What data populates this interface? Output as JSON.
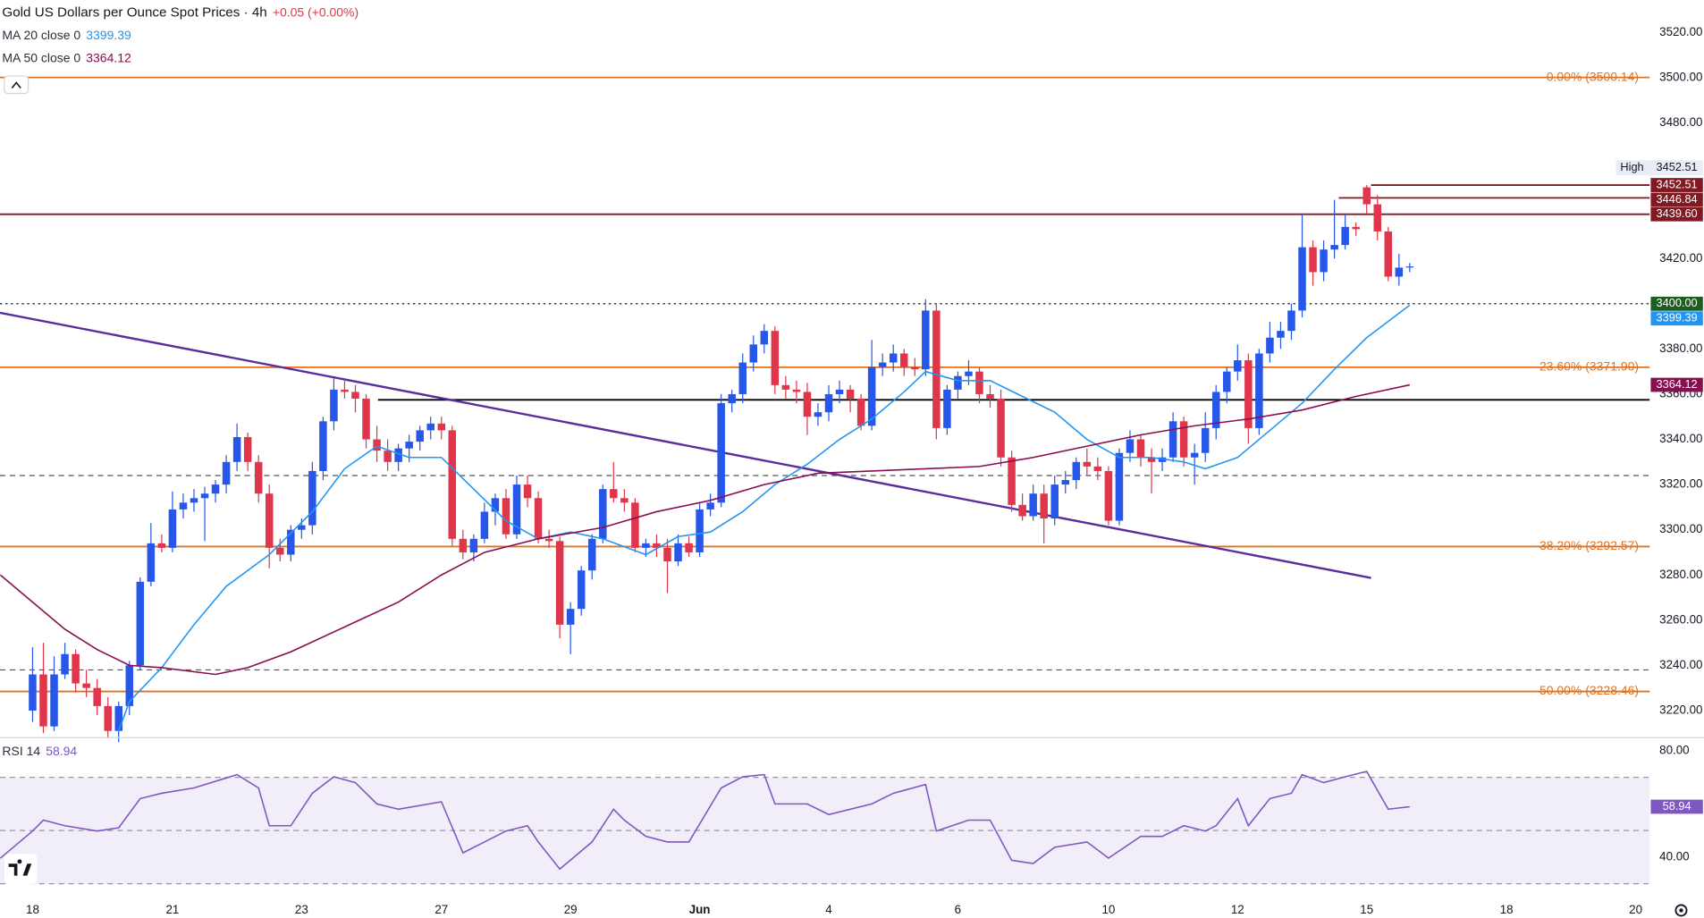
{
  "chart_data": {
    "type": "candlestick",
    "title": "Gold US Dollars per Ounce Spot Prices · 4h",
    "change": "+0.05 (+0.00%)",
    "change_color": "#e0364c",
    "up_color": "#2757e8",
    "down_color": "#e0364c",
    "open": [
      3220,
      3236,
      3213,
      3236,
      3245,
      3232,
      3230,
      3222,
      3211,
      3222,
      3240,
      3277,
      3294,
      3292,
      3309,
      3312,
      3314,
      3316,
      3320,
      3330,
      3341,
      3330,
      3316,
      3292,
      3289,
      3300,
      3302,
      3326,
      3348,
      3362,
      3361,
      3358,
      3340,
      3335,
      3330,
      3336,
      3339,
      3344,
      3347,
      3344,
      3296,
      3290,
      3296,
      3308,
      3314,
      3298,
      3320,
      3314,
      3296,
      3295,
      3258,
      3265,
      3282,
      3296,
      3318,
      3314,
      3312,
      3292,
      3294,
      3292,
      3286,
      3294,
      3290,
      3309,
      3312,
      3356,
      3360,
      3374,
      3382,
      3388,
      3364,
      3362,
      3361,
      3350,
      3352,
      3360,
      3362,
      3358,
      3346,
      3372,
      3374,
      3378,
      3372,
      3371,
      3397,
      3345,
      3362,
      3368,
      3370,
      3360,
      3358,
      3332,
      3311,
      3306,
      3316,
      3305,
      3320,
      3322,
      3330,
      3328,
      3326,
      3304,
      3334,
      3340,
      3332,
      3330,
      3332,
      3348,
      3332,
      3334,
      3345,
      3361,
      3370,
      3375,
      3345,
      3378,
      3385,
      3388,
      3397,
      3425,
      3414,
      3424,
      3426,
      3434,
      3451.5,
      3444,
      3432,
      3412,
      3416.45
    ],
    "high": [
      3248,
      3250,
      3244,
      3250,
      3247,
      3238,
      3234,
      3226,
      3224,
      3242,
      3279,
      3303,
      3298,
      3317,
      3316,
      3318,
      3319,
      3322,
      3333,
      3347,
      3343,
      3333,
      3320,
      3296,
      3302,
      3305,
      3330,
      3350,
      3367,
      3366,
      3364,
      3360,
      3346,
      3340,
      3338,
      3342,
      3346,
      3350,
      3350,
      3346,
      3300,
      3298,
      3312,
      3316,
      3318,
      3324,
      3324,
      3317,
      3300,
      3297,
      3268,
      3284,
      3298,
      3320,
      3330,
      3318,
      3314,
      3296,
      3298,
      3296,
      3298,
      3297,
      3312,
      3316,
      3360,
      3362,
      3378,
      3386,
      3391,
      3390,
      3368,
      3366,
      3365,
      3356,
      3364,
      3366,
      3364,
      3360,
      3384,
      3378,
      3382,
      3380,
      3376,
      3402,
      3400,
      3364,
      3370,
      3375,
      3372,
      3364,
      3362,
      3335,
      3316,
      3320,
      3320,
      3324,
      3326,
      3332,
      3336,
      3332,
      3328,
      3336,
      3344,
      3342,
      3336,
      3336,
      3352,
      3350,
      3338,
      3352,
      3364,
      3372,
      3382,
      3378,
      3380,
      3392,
      3392,
      3400,
      3440,
      3428,
      3428,
      3446,
      3440,
      3436,
      3452.51,
      3448,
      3434,
      3422,
      3418
    ],
    "low": [
      3215,
      3210,
      3211,
      3234,
      3228,
      3226,
      3218,
      3208,
      3206,
      3218,
      3238,
      3275,
      3290,
      3290,
      3305,
      3308,
      3295,
      3312,
      3316,
      3326,
      3326,
      3312,
      3283,
      3286,
      3286,
      3296,
      3298,
      3322,
      3344,
      3358,
      3352,
      3336,
      3330,
      3326,
      3326,
      3330,
      3335,
      3340,
      3340,
      3293,
      3287,
      3286,
      3294,
      3302,
      3296,
      3296,
      3310,
      3294,
      3292,
      3252,
      3245,
      3262,
      3278,
      3294,
      3312,
      3308,
      3290,
      3288,
      3288,
      3272,
      3284,
      3288,
      3288,
      3306,
      3310,
      3352,
      3356,
      3370,
      3378,
      3360,
      3358,
      3356,
      3342,
      3346,
      3348,
      3356,
      3352,
      3344,
      3344,
      3368,
      3370,
      3368,
      3368,
      3368,
      3340,
      3342,
      3358,
      3364,
      3356,
      3354,
      3328,
      3308,
      3304,
      3304,
      3294,
      3302,
      3316,
      3318,
      3324,
      3322,
      3302,
      3302,
      3330,
      3328,
      3316,
      3326,
      3330,
      3328,
      3320,
      3330,
      3340,
      3356,
      3366,
      3338,
      3342,
      3374,
      3380,
      3384,
      3394,
      3408,
      3410,
      3420,
      3424,
      3430,
      3440,
      3428,
      3410,
      3408,
      3414
    ],
    "close": [
      3236,
      3213,
      3236,
      3245,
      3232,
      3230,
      3222,
      3211,
      3222,
      3240,
      3277,
      3294,
      3292,
      3309,
      3312,
      3314,
      3316,
      3320,
      3330,
      3341,
      3330,
      3316,
      3292,
      3289,
      3300,
      3302,
      3326,
      3348,
      3362,
      3361,
      3358,
      3340,
      3335,
      3330,
      3336,
      3339,
      3344,
      3347,
      3344,
      3296,
      3290,
      3296,
      3308,
      3314,
      3298,
      3320,
      3314,
      3296,
      3295,
      3258,
      3265,
      3282,
      3296,
      3318,
      3314,
      3312,
      3292,
      3294,
      3292,
      3286,
      3294,
      3290,
      3309,
      3312,
      3356,
      3360,
      3374,
      3382,
      3388,
      3364,
      3362,
      3361,
      3350,
      3352,
      3360,
      3362,
      3358,
      3346,
      3372,
      3374,
      3378,
      3372,
      3371,
      3397,
      3345,
      3362,
      3368,
      3370,
      3360,
      3358,
      3332,
      3311,
      3306,
      3316,
      3305,
      3320,
      3322,
      3330,
      3328,
      3326,
      3304,
      3334,
      3340,
      3332,
      3330,
      3332,
      3348,
      3332,
      3334,
      3345,
      3361,
      3370,
      3375,
      3345,
      3378,
      3385,
      3388,
      3397,
      3425,
      3414,
      3424,
      3426,
      3434,
      3433,
      3444,
      3432,
      3412,
      3416,
      3416.5
    ],
    "xlim": [
      -3.03,
      150.3
    ],
    "xticks": [
      {
        "value": 0,
        "label": "18"
      },
      {
        "value": 13,
        "label": "21"
      },
      {
        "value": 25,
        "label": "23"
      },
      {
        "value": 38,
        "label": "27"
      },
      {
        "value": 50,
        "label": "29"
      },
      {
        "value": 62,
        "label": "Jun"
      },
      {
        "value": 74,
        "label": "4"
      },
      {
        "value": 86,
        "label": "6"
      },
      {
        "value": 100,
        "label": "10"
      },
      {
        "value": 112,
        "label": "12"
      },
      {
        "value": 124,
        "label": "15"
      },
      {
        "value": 137,
        "label": "18"
      },
      {
        "value": 149,
        "label": "20"
      }
    ],
    "ylim": [
      3208.5,
      3534.4
    ],
    "yticks": [
      {
        "value": 3220,
        "label": "3220.00"
      },
      {
        "value": 3240,
        "label": "3240.00"
      },
      {
        "value": 3260,
        "label": "3260.00"
      },
      {
        "value": 3280,
        "label": "3280.00"
      },
      {
        "value": 3300,
        "label": "3300.00"
      },
      {
        "value": 3320,
        "label": "3320.00"
      },
      {
        "value": 3340,
        "label": "3340.00"
      },
      {
        "value": 3360,
        "label": "3360.00"
      },
      {
        "value": 3380,
        "label": "3380.00"
      },
      {
        "value": 3400,
        "label": "3400.00"
      },
      {
        "value": 3420,
        "label": "3420.00"
      },
      {
        "value": 3440,
        "label": "3440.00"
      },
      {
        "value": 3460,
        "label": "3460.00"
      },
      {
        "value": 3480,
        "label": "3480.00"
      },
      {
        "value": 3500,
        "label": "3500.00"
      },
      {
        "value": 3520,
        "label": "3520.00"
      }
    ],
    "ma": [
      {
        "name": "MA 20 close 0",
        "color": "#2196f3",
        "x": [
          8,
          9,
          12,
          15,
          18,
          22,
          26,
          29,
          32,
          35,
          38,
          41,
          44,
          47,
          50,
          53,
          57,
          60,
          63,
          66,
          69,
          72,
          75,
          78,
          81,
          83,
          86,
          89,
          92,
          95,
          98,
          101,
          104,
          107,
          109,
          112,
          115,
          118,
          121,
          124,
          128
        ],
        "values": [
          3211,
          3224,
          3239,
          3258,
          3275,
          3289,
          3308,
          3327,
          3337,
          3332,
          3332,
          3318,
          3304,
          3296,
          3299,
          3296,
          3289,
          3297,
          3299,
          3308,
          3320,
          3329,
          3340,
          3349,
          3361,
          3370,
          3366,
          3366,
          3359,
          3352,
          3340,
          3332,
          3332,
          3330,
          3327,
          3332,
          3344,
          3356,
          3371,
          3385,
          3399.39
        ]
      },
      {
        "name": "MA 50 close 0",
        "color": "#880e4f",
        "x": [
          -3,
          0,
          3,
          6,
          9,
          12,
          17,
          20,
          24,
          29,
          34,
          38,
          42,
          47,
          53,
          58,
          63,
          68,
          73,
          78,
          83,
          88,
          93,
          98,
          103,
          108,
          113,
          118,
          123,
          128
        ],
        "values": [
          3280,
          3268,
          3256,
          3247,
          3240,
          3239,
          3236,
          3239,
          3246,
          3257,
          3268,
          3280,
          3290,
          3296,
          3301,
          3308,
          3313,
          3320,
          3325,
          3326,
          3327,
          3328,
          3332,
          3337,
          3342,
          3346,
          3349,
          3353,
          3359,
          3364.12
        ]
      }
    ],
    "trendline": {
      "color": "#5b2c9b",
      "x": [
        -3.03,
        124.4
      ],
      "values": [
        3396,
        3278.7
      ]
    },
    "fib_color": "#e2711d",
    "fib_levels": [
      {
        "value": 3500.14,
        "label": "0.00% (3500.14)"
      },
      {
        "value": 3371.9,
        "label": "23.60% (3371.90)"
      },
      {
        "value": 3292.57,
        "label": "38.20% (3292.57)"
      },
      {
        "value": 3228.46,
        "label": "50.00% (3228.46)"
      }
    ],
    "levels": [
      {
        "value": 3452.51,
        "label": "3452.51",
        "color": "#801922",
        "start": 124.4,
        "style": "solid"
      },
      {
        "value": 3446.84,
        "label": "3446.84",
        "color": "#801922",
        "start": 121.4,
        "style": "solid"
      },
      {
        "value": 3439.6,
        "label": "3439.60",
        "color": "#801922",
        "style": "solid"
      },
      {
        "value": 3400,
        "label": "3400.00",
        "color": "#000000",
        "label_color": "#1b5e20",
        "style": "dotted"
      },
      {
        "value": 3357.5,
        "color": "#000000",
        "start": 32.1,
        "style": "solid"
      },
      {
        "value": 3324,
        "color": "#555555",
        "style": "dashed"
      },
      {
        "value": 3238,
        "color": "#555555",
        "style": "dashed"
      }
    ],
    "high_label": "High",
    "rsi": {
      "name": "RSI 14",
      "color": "#7e57c2",
      "ylim": [
        26.5,
        84.5
      ],
      "yticks": [
        {
          "value": 80,
          "label": "80.00"
        },
        {
          "value": 40,
          "label": "40.00"
        }
      ],
      "band": [
        30,
        70
      ],
      "midline": 50,
      "x": [
        -3,
        0,
        1,
        3,
        6,
        8,
        10,
        12,
        15,
        19,
        21,
        22,
        24,
        26,
        28,
        30,
        32,
        34,
        38,
        40,
        42,
        44,
        46,
        47,
        49,
        52,
        54,
        55,
        57,
        59,
        61,
        64,
        66,
        68,
        69,
        72,
        74,
        78,
        80,
        83,
        84,
        87,
        89,
        91,
        93,
        95,
        98,
        100,
        103,
        105,
        107,
        109,
        110,
        112,
        113,
        115,
        117,
        118,
        120,
        122,
        124,
        126,
        128
      ],
      "values": [
        39.6,
        49.8,
        53.9,
        51.8,
        49.8,
        51,
        62,
        64,
        66,
        71,
        66,
        51.8,
        51.8,
        64,
        70.2,
        68,
        60,
        58,
        60.8,
        41.6,
        45.7,
        49.8,
        51.8,
        45.7,
        35.5,
        45.7,
        58,
        53.9,
        47.8,
        45.7,
        45.7,
        66,
        70.2,
        71,
        60,
        60,
        56,
        60,
        64,
        67.3,
        49.8,
        53.9,
        53.9,
        38.8,
        37.6,
        43.7,
        45.7,
        39.6,
        47.8,
        47.8,
        51.8,
        49.8,
        51.8,
        62,
        51.8,
        62,
        64,
        71,
        68,
        70.2,
        72.2,
        58,
        58.94
      ]
    }
  }
}
